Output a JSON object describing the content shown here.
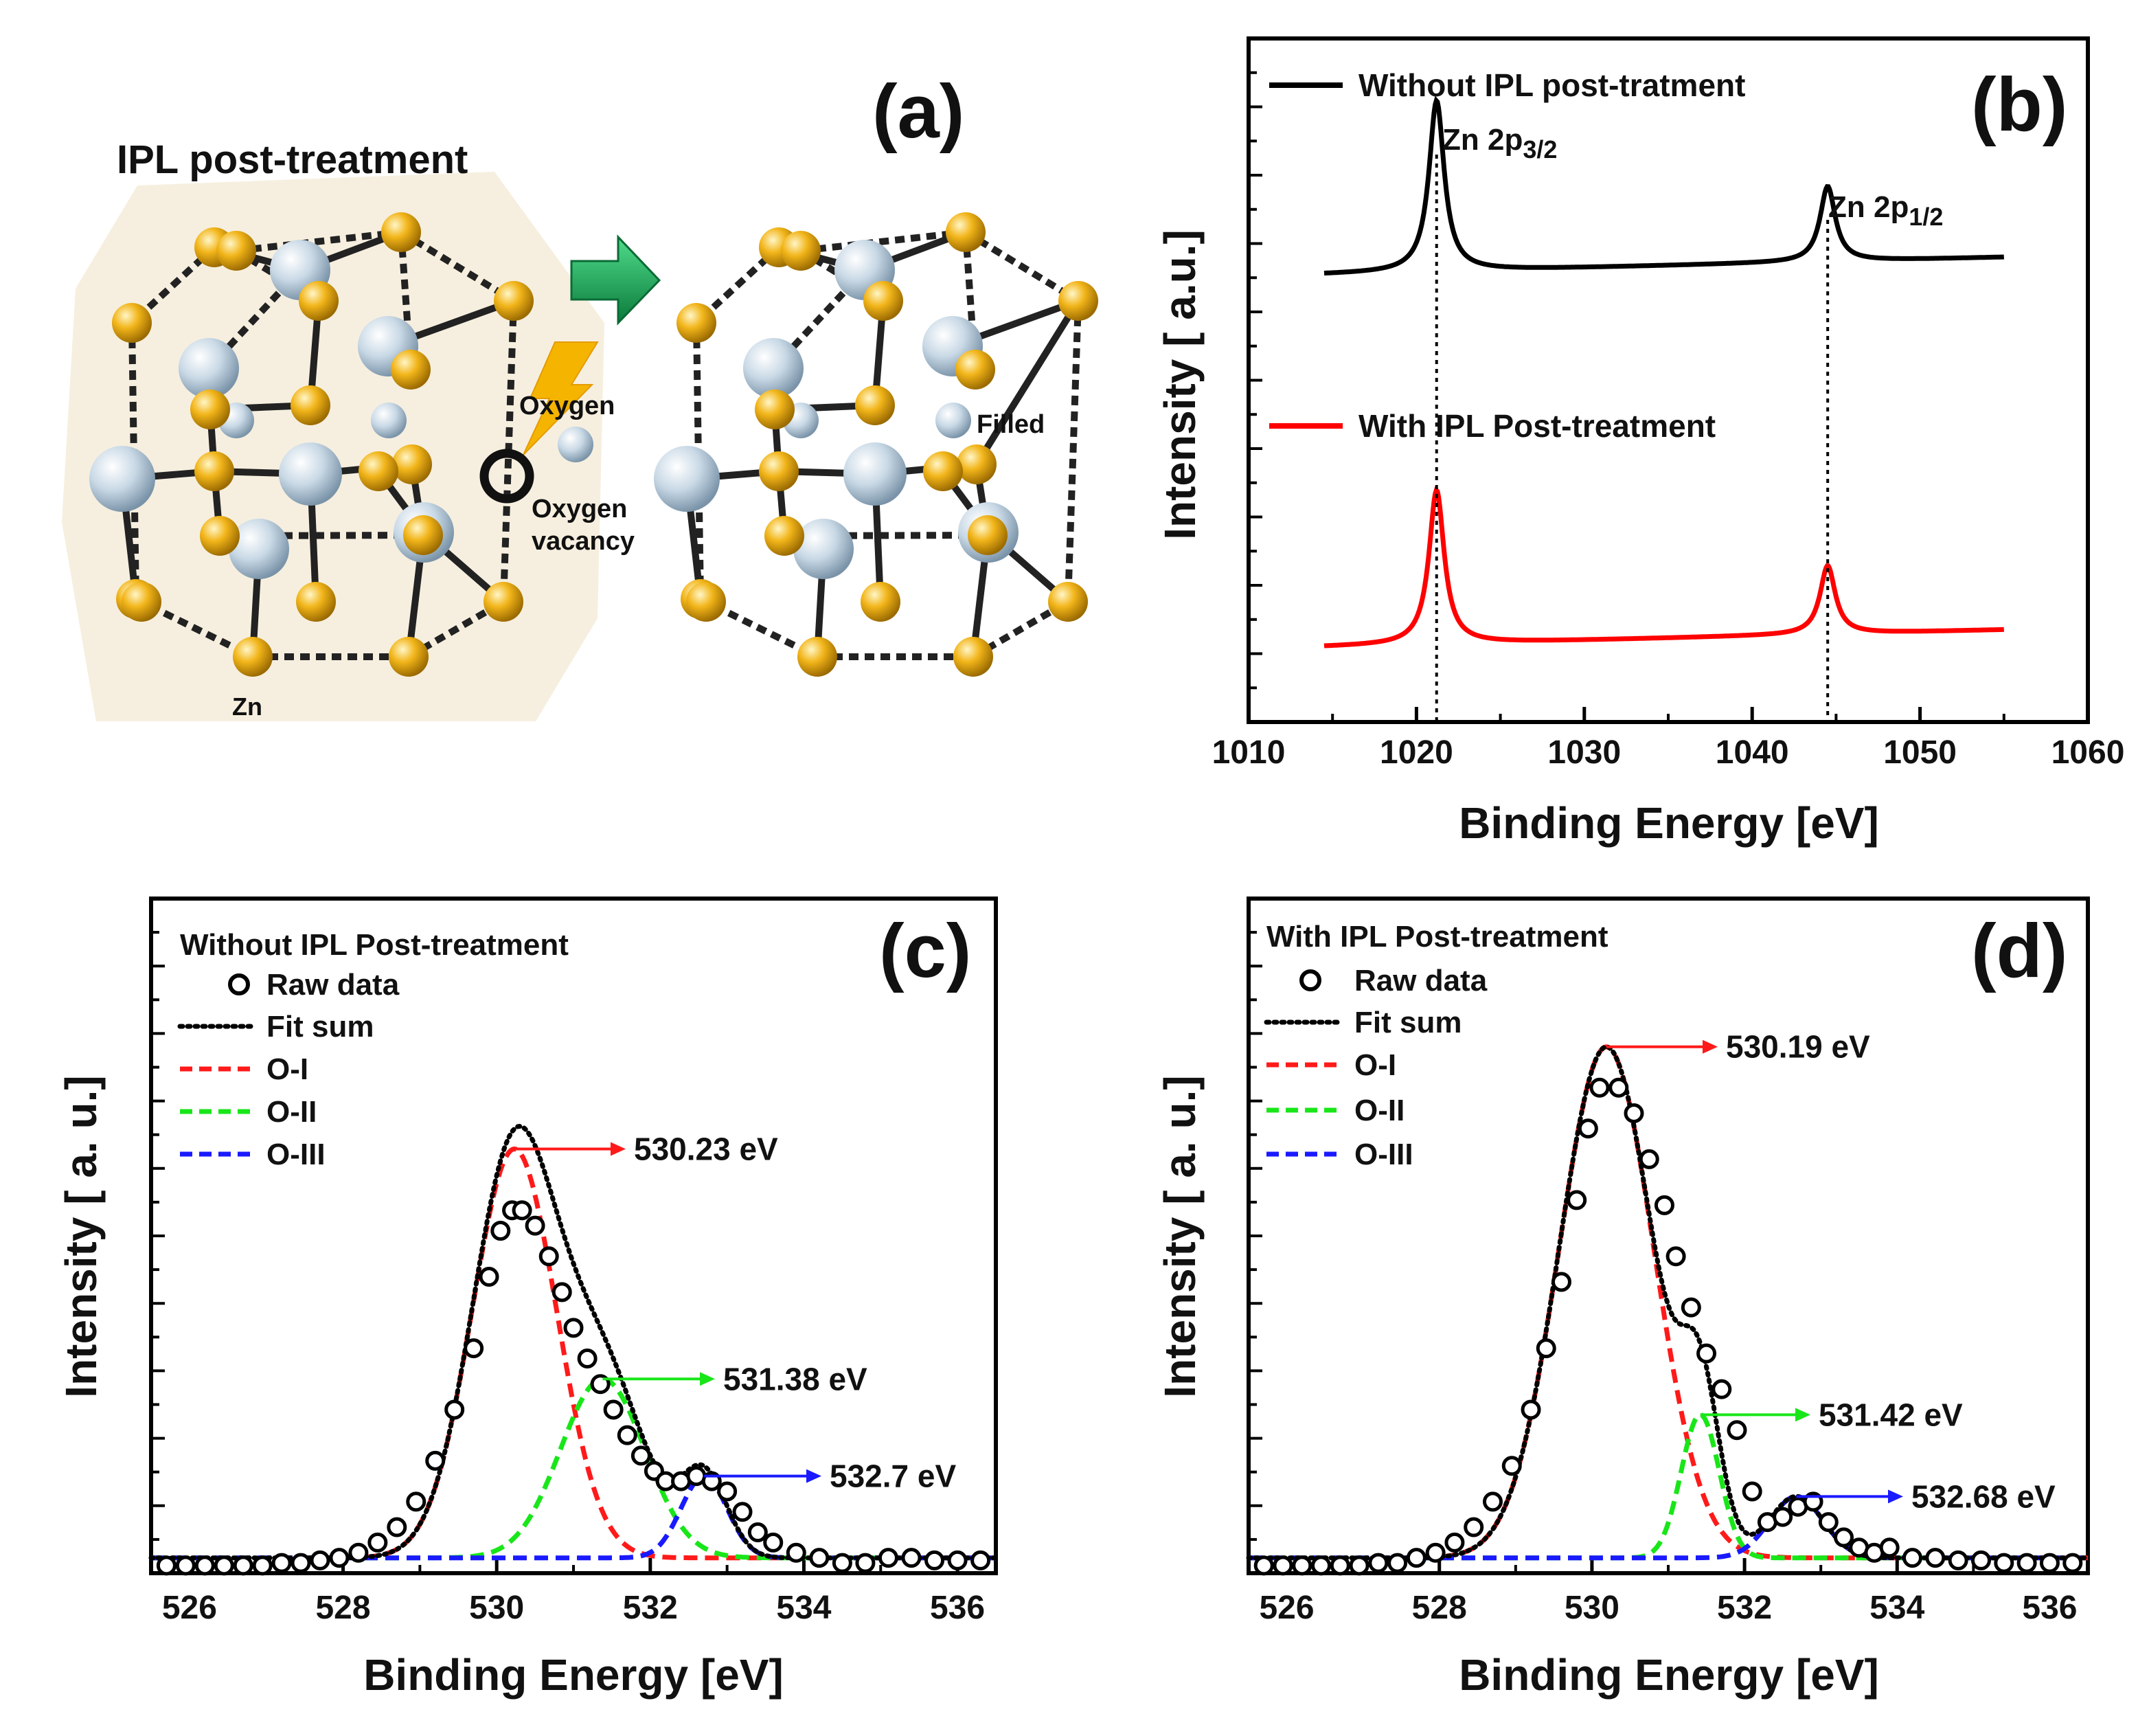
{
  "panel_a": {
    "panel_label": "(a)",
    "title": "IPL post-treatment",
    "labels": {
      "oxygen": "Oxygen",
      "vacancy_line1": "Oxygen",
      "vacancy_line2": "vacancy",
      "zn": "Zn",
      "filled": "Filled"
    },
    "colors": {
      "zn_atom": "#f2b51a",
      "o_atom": "#c9d9e6",
      "arrow": "#1ea85a",
      "background": "#f6efdf"
    }
  },
  "chart_data": [
    {
      "panel": "b",
      "panel_label": "(b)",
      "type": "line",
      "xlabel": "Binding Energy [eV]",
      "ylabel": "Intensity [ a.u.]",
      "xlim": [
        1010,
        1060
      ],
      "xticks": [
        1010,
        1020,
        1030,
        1040,
        1050,
        1060
      ],
      "ylim": [
        0,
        1
      ],
      "series": [
        {
          "name": "Without IPL post-tratment",
          "color": "#000000",
          "baseline_start": 0.655,
          "baseline_end": 0.68,
          "peaks": [
            {
              "center": 1021.2,
              "height": 0.25,
              "width": 0.55
            },
            {
              "center": 1044.5,
              "height": 0.11,
              "width": 0.55
            }
          ],
          "x_range": [
            1014.5,
            1055
          ]
        },
        {
          "name": "With IPL Post-treatment",
          "color": "#ff0000",
          "baseline_start": 0.11,
          "baseline_end": 0.135,
          "peaks": [
            {
              "center": 1021.2,
              "height": 0.225,
              "width": 0.55
            },
            {
              "center": 1044.5,
              "height": 0.1,
              "width": 0.55
            }
          ],
          "x_range": [
            1014.5,
            1055
          ]
        }
      ],
      "annotations": [
        {
          "text": "Zn 2p",
          "sub": "3/2",
          "x": 1021.2
        },
        {
          "text": "Zn 2p",
          "sub": "1/2",
          "x": 1044.5
        }
      ]
    },
    {
      "panel": "c",
      "panel_label": "(c)",
      "type": "scatter",
      "legend_title": "Without IPL Post-treatment",
      "xlabel": "Binding Energy [eV]",
      "ylabel": "Intensity [ a. u.]",
      "xlim": [
        525.5,
        536.5
      ],
      "xticks": [
        526,
        528,
        530,
        532,
        534,
        536
      ],
      "ylim": [
        0,
        1.32
      ],
      "baseline": 0.03,
      "legend": {
        "raw": "Raw data",
        "fit": "Fit sum",
        "o1": "O-I",
        "o2": "O-II",
        "o3": "O-III"
      },
      "components": [
        {
          "name": "O-I",
          "center": 530.23,
          "height": 0.8,
          "sigma": 0.55,
          "color": "#ff1a1a",
          "label": "530.23 eV"
        },
        {
          "name": "O-II",
          "center": 531.38,
          "height": 0.35,
          "sigma": 0.55,
          "color": "#19e619",
          "label": "531.38 eV"
        },
        {
          "name": "O-III",
          "center": 532.7,
          "height": 0.16,
          "sigma": 0.3,
          "color": "#1a1aff",
          "label": "532.7 eV"
        }
      ],
      "raw_data": [
        [
          525.7,
          0.015
        ],
        [
          525.95,
          0.015
        ],
        [
          526.2,
          0.015
        ],
        [
          526.45,
          0.015
        ],
        [
          526.7,
          0.015
        ],
        [
          526.95,
          0.015
        ],
        [
          527.2,
          0.02
        ],
        [
          527.45,
          0.02
        ],
        [
          527.7,
          0.025
        ],
        [
          527.95,
          0.03
        ],
        [
          528.2,
          0.04
        ],
        [
          528.45,
          0.06
        ],
        [
          528.7,
          0.09
        ],
        [
          528.95,
          0.14
        ],
        [
          529.2,
          0.22
        ],
        [
          529.45,
          0.32
        ],
        [
          529.7,
          0.44
        ],
        [
          529.9,
          0.58
        ],
        [
          530.05,
          0.67
        ],
        [
          530.2,
          0.71
        ],
        [
          530.33,
          0.71
        ],
        [
          530.5,
          0.68
        ],
        [
          530.68,
          0.62
        ],
        [
          530.85,
          0.55
        ],
        [
          531.0,
          0.48
        ],
        [
          531.18,
          0.42
        ],
        [
          531.35,
          0.37
        ],
        [
          531.52,
          0.32
        ],
        [
          531.7,
          0.27
        ],
        [
          531.88,
          0.23
        ],
        [
          532.05,
          0.2
        ],
        [
          532.2,
          0.18
        ],
        [
          532.4,
          0.18
        ],
        [
          532.6,
          0.19
        ],
        [
          532.8,
          0.18
        ],
        [
          533.0,
          0.16
        ],
        [
          533.2,
          0.12
        ],
        [
          533.4,
          0.08
        ],
        [
          533.6,
          0.06
        ],
        [
          533.9,
          0.04
        ],
        [
          534.2,
          0.03
        ],
        [
          534.5,
          0.02
        ],
        [
          534.8,
          0.02
        ],
        [
          535.1,
          0.03
        ],
        [
          535.4,
          0.03
        ],
        [
          535.7,
          0.025
        ],
        [
          536.0,
          0.025
        ],
        [
          536.3,
          0.025
        ]
      ]
    },
    {
      "panel": "d",
      "panel_label": "(d)",
      "type": "scatter",
      "legend_title": "With IPL Post-treatment",
      "xlabel": "Binding Energy [eV]",
      "ylabel": "Intensity [ a. u.]",
      "xlim": [
        525.5,
        536.5
      ],
      "xticks": [
        526,
        528,
        530,
        532,
        534,
        536
      ],
      "ylim": [
        0,
        1.32
      ],
      "baseline": 0.03,
      "legend": {
        "raw": "Raw data",
        "fit": "Fit sum",
        "o1": "O-I",
        "o2": "O-II",
        "o3": "O-III"
      },
      "components": [
        {
          "name": "O-I",
          "center": 530.19,
          "height": 1.0,
          "sigma": 0.62,
          "color": "#ff1a1a",
          "label": "530.19 eV"
        },
        {
          "name": "O-II",
          "center": 531.42,
          "height": 0.28,
          "sigma": 0.25,
          "color": "#19e619",
          "label": "531.42 eV"
        },
        {
          "name": "O-III",
          "center": 532.68,
          "height": 0.12,
          "sigma": 0.35,
          "color": "#1a1aff",
          "label": "532.68 eV"
        }
      ],
      "raw_data": [
        [
          525.7,
          0.015
        ],
        [
          525.95,
          0.015
        ],
        [
          526.2,
          0.015
        ],
        [
          526.45,
          0.015
        ],
        [
          526.7,
          0.015
        ],
        [
          526.95,
          0.015
        ],
        [
          527.2,
          0.02
        ],
        [
          527.45,
          0.02
        ],
        [
          527.7,
          0.03
        ],
        [
          527.95,
          0.04
        ],
        [
          528.2,
          0.06
        ],
        [
          528.45,
          0.09
        ],
        [
          528.7,
          0.14
        ],
        [
          528.95,
          0.21
        ],
        [
          529.2,
          0.32
        ],
        [
          529.4,
          0.44
        ],
        [
          529.6,
          0.57
        ],
        [
          529.8,
          0.73
        ],
        [
          529.95,
          0.87
        ],
        [
          530.1,
          0.95
        ],
        [
          530.35,
          0.95
        ],
        [
          530.55,
          0.9
        ],
        [
          530.75,
          0.81
        ],
        [
          530.95,
          0.72
        ],
        [
          531.1,
          0.62
        ],
        [
          531.3,
          0.52
        ],
        [
          531.5,
          0.43
        ],
        [
          531.7,
          0.36
        ],
        [
          531.9,
          0.28
        ],
        [
          532.1,
          0.16
        ],
        [
          532.3,
          0.1
        ],
        [
          532.5,
          0.11
        ],
        [
          532.7,
          0.13
        ],
        [
          532.9,
          0.14
        ],
        [
          533.1,
          0.1
        ],
        [
          533.3,
          0.07
        ],
        [
          533.5,
          0.05
        ],
        [
          533.7,
          0.04
        ],
        [
          533.9,
          0.05
        ],
        [
          534.2,
          0.03
        ],
        [
          534.5,
          0.03
        ],
        [
          534.8,
          0.025
        ],
        [
          535.1,
          0.025
        ],
        [
          535.4,
          0.02
        ],
        [
          535.7,
          0.02
        ],
        [
          536.0,
          0.02
        ],
        [
          536.3,
          0.02
        ]
      ]
    }
  ]
}
